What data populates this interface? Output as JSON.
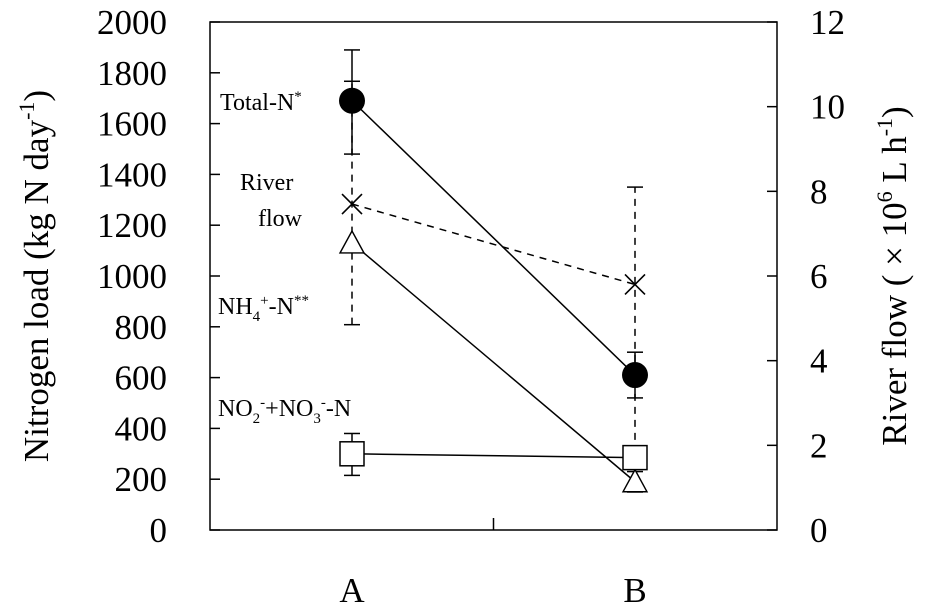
{
  "chart_data": {
    "type": "line",
    "categories": [
      "A",
      "B"
    ],
    "left_axis": {
      "title_parts": [
        "Nitrogen load (kg N day",
        "-1",
        ")"
      ],
      "ylim": [
        0,
        2000
      ],
      "ticks": [
        "0",
        "200",
        "400",
        "600",
        "800",
        "1000",
        "1200",
        "1400",
        "1600",
        "1800",
        "2000"
      ]
    },
    "right_axis": {
      "title_parts": [
        "River flow ( × 10",
        "6",
        " L h",
        "-1",
        ")"
      ],
      "ylim": [
        0,
        12
      ],
      "ticks": [
        "0",
        "2",
        "4",
        "6",
        "8",
        "10",
        "12"
      ]
    },
    "series": [
      {
        "key": "total_n",
        "axis": "left",
        "marker": "filled-circle",
        "line": "solid",
        "values": [
          1690,
          610
        ],
        "err_low": [
          1480,
          520
        ],
        "err_high": [
          1890,
          700
        ],
        "label_parts": [
          {
            "t": "Total-N",
            "k": "n"
          },
          {
            "t": "*",
            "k": "sup"
          }
        ]
      },
      {
        "key": "river_flow",
        "axis": "right",
        "marker": "x",
        "line": "dashed",
        "values": [
          7.7,
          5.8
        ],
        "err_low": [
          4.85,
          0.9
        ],
        "err_high": [
          10.6,
          8.1
        ],
        "label_lines": [
          "River",
          "flow"
        ]
      },
      {
        "key": "nh4_n",
        "axis": "left",
        "marker": "open-triangle",
        "line": "solid",
        "values": [
          1130,
          190
        ],
        "err_low": [
          null,
          150
        ],
        "err_high": [
          null,
          230
        ],
        "label_parts": [
          {
            "t": "NH",
            "k": "n"
          },
          {
            "t": "4",
            "k": "sub"
          },
          {
            "t": "+",
            "k": "sup"
          },
          {
            "t": "-N",
            "k": "n"
          },
          {
            "t": "**",
            "k": "sup"
          }
        ]
      },
      {
        "key": "no2_no3_n",
        "axis": "left",
        "marker": "open-square",
        "line": "solid",
        "values": [
          300,
          285
        ],
        "err_low": [
          215,
          null
        ],
        "err_high": [
          380,
          null
        ],
        "label_parts": [
          {
            "t": "NO",
            "k": "n"
          },
          {
            "t": "2",
            "k": "sub"
          },
          {
            "t": "-",
            "k": "sup"
          },
          {
            "t": "+NO",
            "k": "n"
          },
          {
            "t": "3",
            "k": "sub"
          },
          {
            "t": "-",
            "k": "sup"
          },
          {
            "t": "-N",
            "k": "n"
          }
        ]
      }
    ]
  }
}
